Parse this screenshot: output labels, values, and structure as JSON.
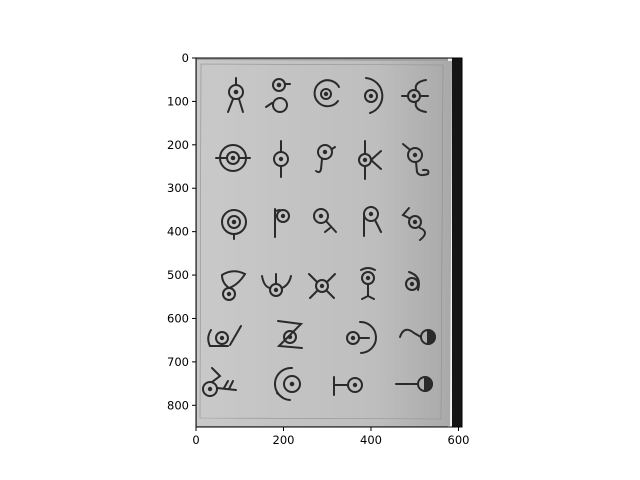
{
  "figure": {
    "xaxis": {
      "lim": [
        0,
        608
      ],
      "ticks": [
        0,
        200,
        400,
        600
      ],
      "tick_labels": [
        "0",
        "200",
        "400",
        "600"
      ]
    },
    "yaxis": {
      "lim": [
        850,
        0
      ],
      "ticks": [
        0,
        100,
        200,
        300,
        400,
        500,
        600,
        700,
        800
      ],
      "tick_labels": [
        "0",
        "100",
        "200",
        "300",
        "400",
        "500",
        "600",
        "700",
        "800"
      ]
    },
    "image": {
      "subject": "photo-of-paper-sheet-with-unown-like-glyphs",
      "paper_color": "#bdbdbd",
      "ink_color": "#2a2a2a",
      "grid_rows": 6,
      "glyph_count": 28
    }
  }
}
